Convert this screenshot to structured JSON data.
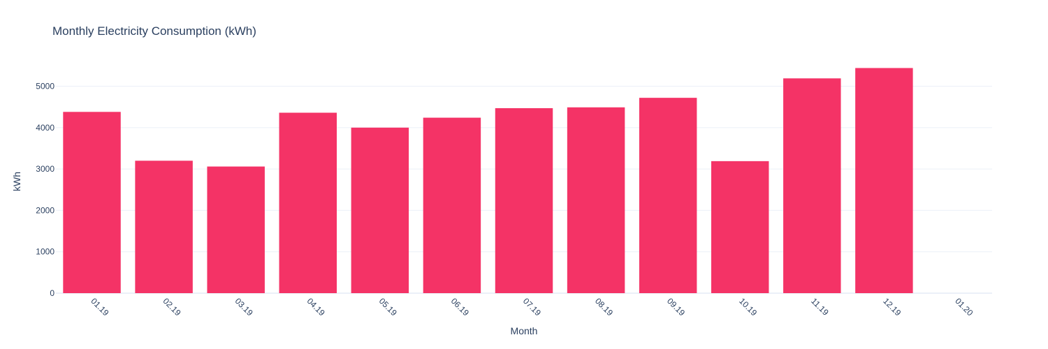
{
  "chart_data": {
    "type": "bar",
    "title": "Monthly Electricity Consumption (kWh)",
    "xlabel": "Month",
    "ylabel": "kWh",
    "categories": [
      "01.19",
      "02.19",
      "03.19",
      "04.19",
      "05.19",
      "06.19",
      "07.19",
      "08.19",
      "09.19",
      "10.19",
      "11.19",
      "12.19",
      "01.20"
    ],
    "values": [
      4380,
      3200,
      3060,
      4360,
      4000,
      4240,
      4470,
      4490,
      4720,
      3190,
      5190,
      5440,
      null
    ],
    "ylim": [
      0,
      5650
    ],
    "yticks": [
      0,
      1000,
      2000,
      3000,
      4000,
      5000
    ],
    "grid": true,
    "legend": "none",
    "bar_color": "#f43366",
    "grid_color": "#ebf0f8",
    "text_color": "#2a3f5f"
  }
}
